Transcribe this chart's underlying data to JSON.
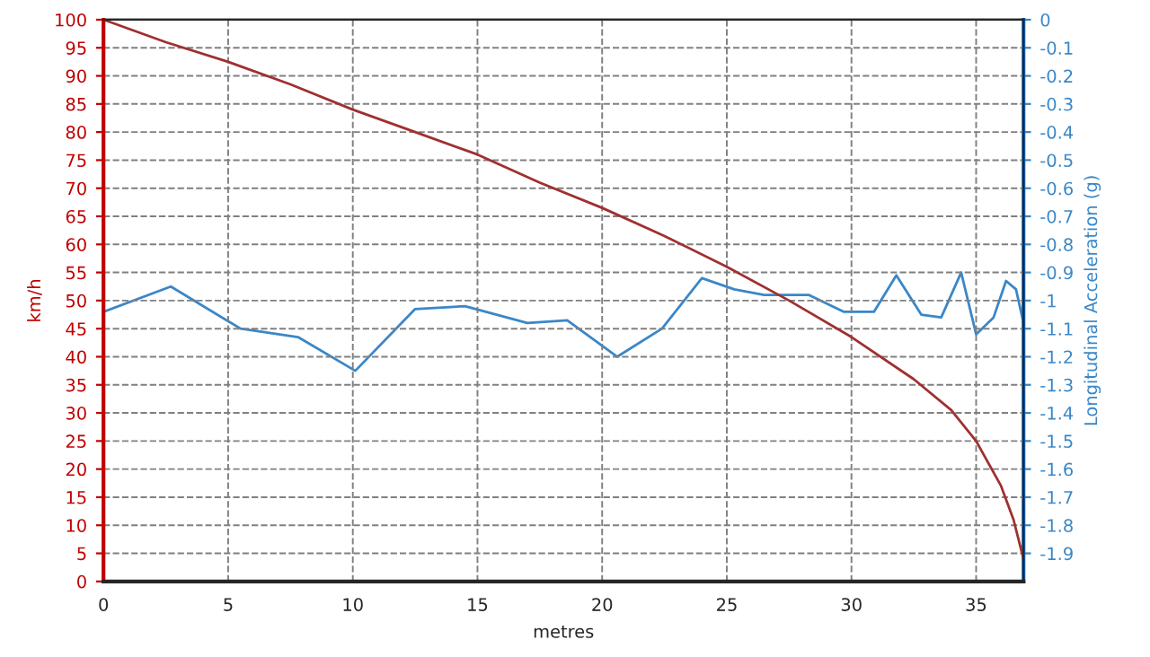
{
  "chart_data": {
    "type": "line",
    "xlabel": "metres",
    "ylabel": "km/h",
    "y2label": "Longitudinal Acceleration (g)",
    "xlim": [
      0,
      36.9
    ],
    "xticks": [
      0,
      5,
      10,
      15,
      20,
      25,
      30,
      35
    ],
    "ylim": [
      0,
      100
    ],
    "yticks": [
      0,
      5,
      10,
      15,
      20,
      25,
      30,
      35,
      40,
      45,
      50,
      55,
      60,
      65,
      70,
      75,
      80,
      85,
      90,
      95,
      100
    ],
    "y2lim": [
      -2,
      0
    ],
    "y2ticks": [
      -1.9,
      -1.8,
      -1.7,
      -1.6,
      -1.5,
      -1.4,
      -1.3,
      -1.2,
      -1.1,
      -1,
      -0.9,
      -0.8,
      -0.7,
      -0.6,
      -0.5,
      -0.4,
      -0.3,
      -0.2,
      -0.1,
      0
    ],
    "grid": true,
    "series": [
      {
        "color": "#a03030",
        "x": [
          0,
          2.5,
          5,
          7.5,
          10,
          12.5,
          15,
          17.5,
          20,
          22.5,
          25,
          27.5,
          30,
          32.5,
          34,
          35,
          36,
          36.5,
          36.9
        ],
        "values": [
          100,
          96,
          92.5,
          88.5,
          84,
          80,
          76,
          71,
          66.5,
          61.5,
          56,
          50,
          43.5,
          36,
          30.5,
          25,
          17,
          11,
          4
        ]
      },
      {
        "color": "#3a87c8",
        "axis": "y2",
        "x": [
          0,
          2.7,
          5.5,
          7.8,
          10.1,
          12.5,
          14.5,
          17,
          18.6,
          20.6,
          22.4,
          24,
          25.3,
          26.5,
          28.3,
          29.7,
          30.9,
          31.8,
          32.8,
          33.6,
          34.4,
          35,
          35.7,
          36.2,
          36.6,
          36.9
        ],
        "values": [
          -1.04,
          -0.95,
          -1.1,
          -1.13,
          -1.25,
          -1.03,
          -1.02,
          -1.08,
          -1.07,
          -1.2,
          -1.1,
          -0.92,
          -0.96,
          -0.98,
          -0.98,
          -1.04,
          -1.04,
          -0.91,
          -1.05,
          -1.06,
          -0.9,
          -1.12,
          -1.06,
          -0.93,
          -0.96,
          -1.08
        ]
      }
    ]
  }
}
